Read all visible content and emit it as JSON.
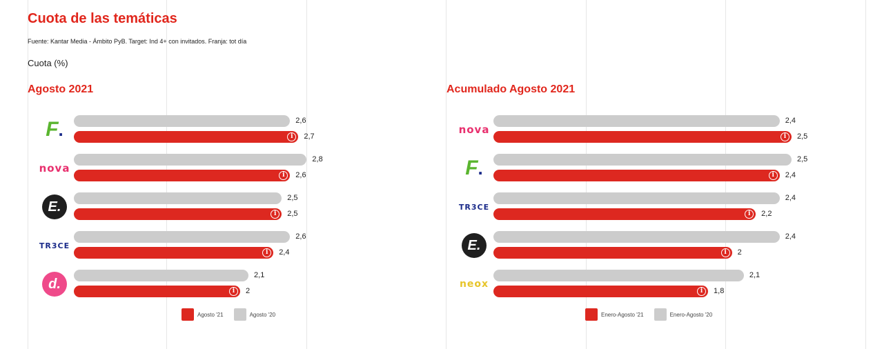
{
  "header": {
    "title": "Cuota de las temáticas",
    "source": "Fuente: Kantar Media - Ámbito PyB. Target: Ind 4+ con invitados. Franja: tot día",
    "unit_label": "Cuota (%)"
  },
  "colors": {
    "current": "#dd2820",
    "previous": "#cccccc",
    "accent": "#e1261c"
  },
  "chart_data": [
    {
      "type": "bar",
      "title": "Agosto 2021",
      "categories": [
        "fdf-logo",
        "nova-logo",
        "energy-logo",
        "trece-logo",
        "divinity-logo"
      ],
      "series": [
        {
          "name": "Agosto '20",
          "values": [
            2.6,
            2.8,
            2.5,
            2.6,
            2.1
          ]
        },
        {
          "name": "Agosto '21",
          "values": [
            2.7,
            2.6,
            2.5,
            2.4,
            2
          ]
        }
      ],
      "value_labels_prev": [
        "2,6",
        "2,8",
        "2,5",
        "2,6",
        "2,1"
      ],
      "value_labels_curr": [
        "2,7",
        "2,6",
        "2,5",
        "2,4",
        "2"
      ],
      "legend": [
        "Agosto '21",
        "Agosto '20"
      ],
      "legend_position": "bottom"
    },
    {
      "type": "bar",
      "title": "Acumulado Agosto 2021",
      "categories": [
        "nova-logo",
        "fdf-logo",
        "trece-logo",
        "energy-logo",
        "neox-logo"
      ],
      "series": [
        {
          "name": "Enero-Agosto '20",
          "values": [
            2.4,
            2.5,
            2.4,
            2.4,
            2.1
          ]
        },
        {
          "name": "Enero-Agosto '21",
          "values": [
            2.5,
            2.4,
            2.2,
            2,
            1.8
          ]
        }
      ],
      "value_labels_prev": [
        "2,4",
        "2,5",
        "2,4",
        "2,4",
        "2,1"
      ],
      "value_labels_curr": [
        "2,5",
        "2,4",
        "2,2",
        "2",
        "1,8"
      ],
      "legend": [
        "Enero-Agosto '21",
        "Enero-Agosto '20"
      ],
      "legend_position": "bottom"
    }
  ],
  "logos": {
    "nova": "nova",
    "trece": "TR3CE",
    "neox": "neox",
    "energy": "E.",
    "divinity": "d.",
    "fdf": "F."
  }
}
